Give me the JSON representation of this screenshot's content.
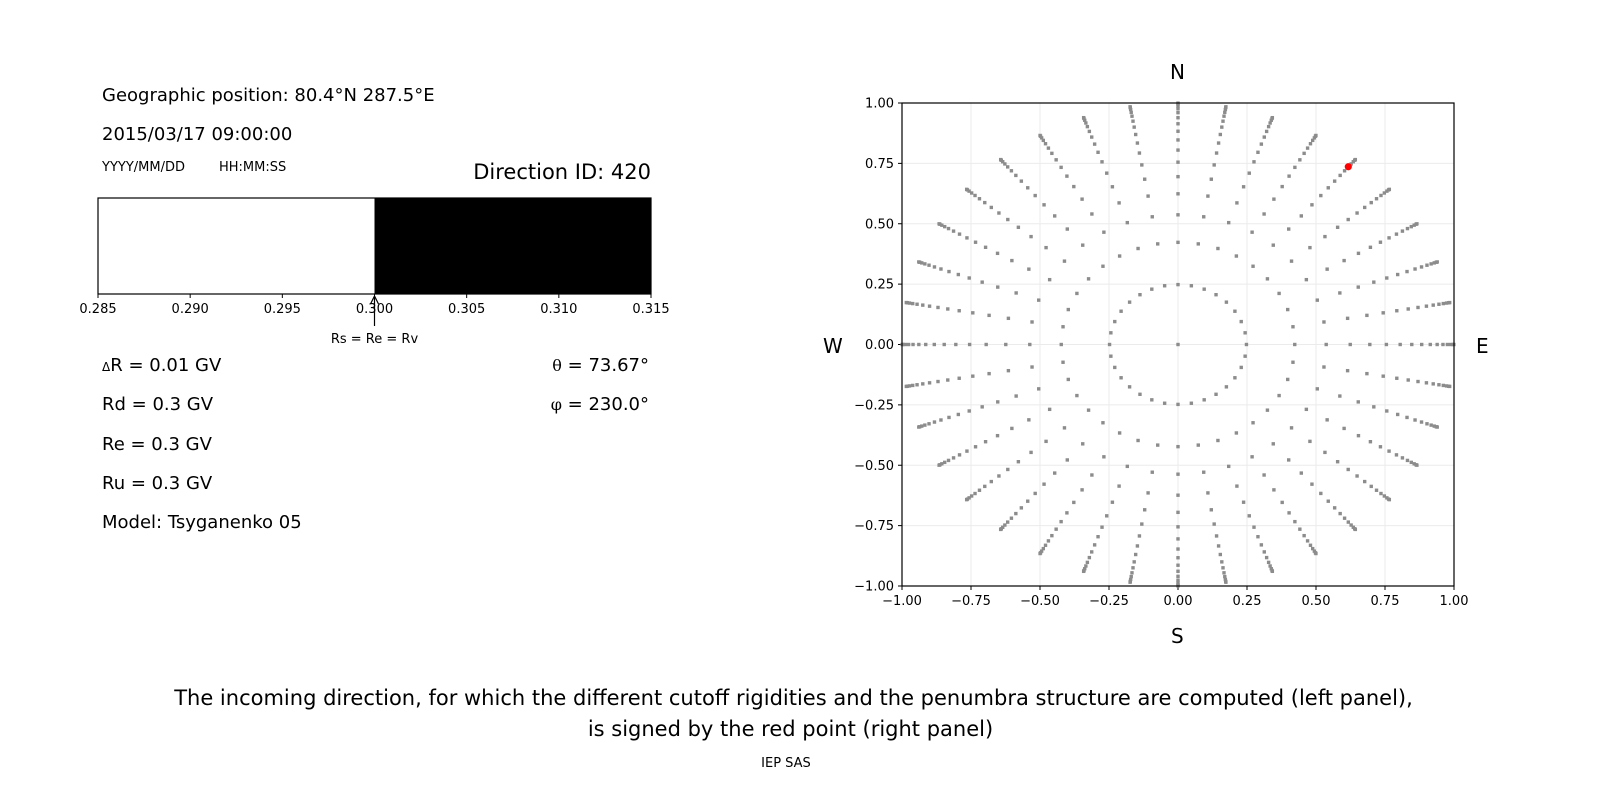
{
  "left_panel": {
    "geo_position": "Geographic position: 80.4°N 287.5°E",
    "datetime": "2015/03/17 09:00:00",
    "date_format": "YYYY/MM/DD",
    "time_format": "HH:MM:SS",
    "direction_id": "Direction ID: 420",
    "delta_r_symbol": "Δ",
    "delta_r": "R = 0.01 GV",
    "rd": "Rd = 0.3 GV",
    "re": "Re = 0.3 GV",
    "ru": "Ru = 0.3 GV",
    "model": "Model: Tsyganenko 05",
    "theta_symbol": "θ",
    "theta": " = 73.67°",
    "phi_symbol": "φ",
    "phi": " = 230.0°",
    "arrow_label": "Rs = Re = Rv"
  },
  "compass": {
    "north": "N",
    "south": "S",
    "west": "W",
    "east": "E"
  },
  "caption": {
    "line1": "The incoming direction, for which the different cutoff rigidities and the penumbra structure are computed (left panel),",
    "line2": "is signed by the red point (right panel)"
  },
  "footer": "IEP SAS",
  "chart_data": [
    {
      "type": "bar",
      "description_role": "penumbra",
      "xlim": [
        0.285,
        0.315
      ],
      "xticks": [
        "0.285",
        "0.290",
        "0.295",
        "0.300",
        "0.305",
        "0.310",
        "0.315"
      ],
      "segments": [
        {
          "from": 0.285,
          "to": 0.3,
          "color": "#ffffff"
        },
        {
          "from": 0.3,
          "to": 0.315,
          "color": "#000000"
        }
      ],
      "arrow_at": 0.3,
      "grid": false
    },
    {
      "type": "scatter",
      "xlim": [
        -1.0,
        1.0
      ],
      "ylim": [
        -1.0,
        1.0
      ],
      "xticks": [
        "−1.00",
        "−0.75",
        "−0.50",
        "−0.25",
        "0.00",
        "0.25",
        "0.50",
        "0.75",
        "1.00"
      ],
      "yticks": [
        "1.00",
        "0.75",
        "0.50",
        "0.25",
        "0.00",
        "−0.25",
        "−0.50",
        "−0.75",
        "−1.00"
      ],
      "grid": true,
      "point_color": "#8c8c8c",
      "highlight_color": "#ff0000",
      "rings": [
        {
          "r": 0.0,
          "n": 1
        },
        {
          "r": 0.248,
          "n": 32
        },
        {
          "r": 0.423,
          "n": 36
        },
        {
          "r": 0.537,
          "n": 36
        },
        {
          "r": 0.624,
          "n": 36
        },
        {
          "r": 0.695,
          "n": 36
        },
        {
          "r": 0.755,
          "n": 36
        },
        {
          "r": 0.805,
          "n": 36
        },
        {
          "r": 0.847,
          "n": 36
        },
        {
          "r": 0.883,
          "n": 36
        },
        {
          "r": 0.914,
          "n": 36
        },
        {
          "r": 0.939,
          "n": 36
        },
        {
          "r": 0.96,
          "n": 36
        },
        {
          "r": 0.976,
          "n": 36
        },
        {
          "r": 0.988,
          "n": 36
        },
        {
          "r": 0.996,
          "n": 36
        },
        {
          "r": 0.9995,
          "n": 36
        }
      ],
      "highlight_point": {
        "x": 0.617,
        "y": 0.736
      }
    }
  ]
}
